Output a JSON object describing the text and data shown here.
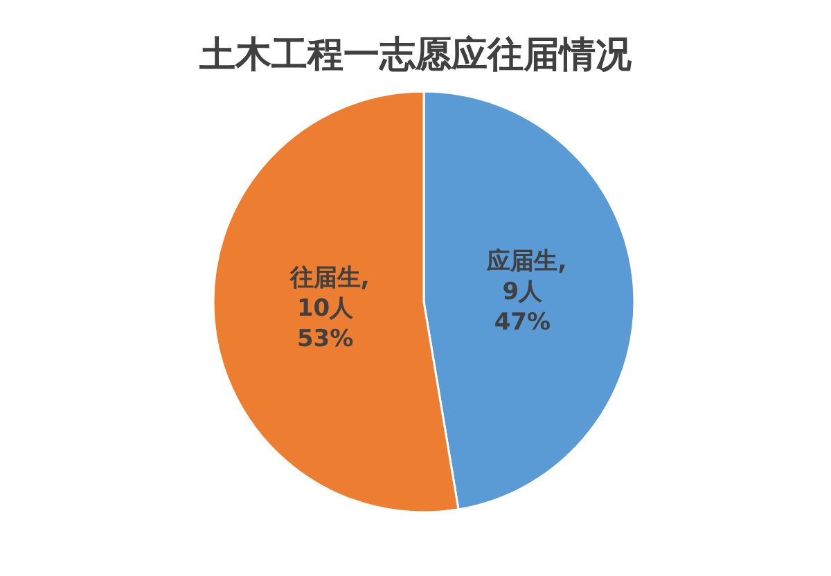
{
  "chart_data": {
    "type": "pie",
    "title": "土木工程一志愿应往届情况",
    "categories": [
      "应届生",
      "往届生"
    ],
    "values": [
      9,
      10
    ],
    "value_labels": [
      "9人\n47%",
      "10人\n53%"
    ],
    "colors": [
      "#5b9bd5",
      "#ed7d31"
    ],
    "legend": false
  }
}
